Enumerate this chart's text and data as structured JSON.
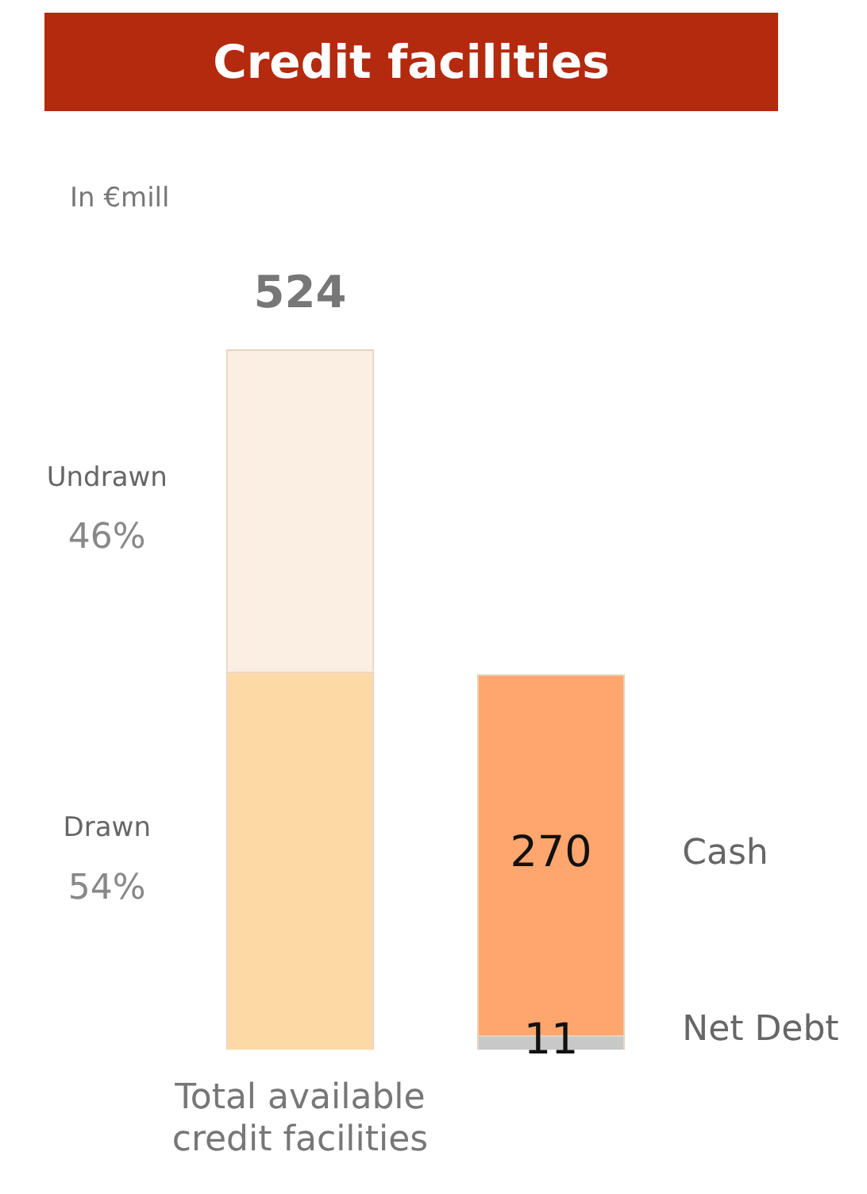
{
  "chart_data": {
    "type": "bar",
    "title": "Credit facilities",
    "subtitle": "In €mill",
    "categories": [
      "Total available credit facilities",
      null
    ],
    "stacked": true,
    "series": [
      {
        "name": "Drawn",
        "color": "#fdd9a6",
        "values": [
          283,
          null
        ]
      },
      {
        "name": "Undrawn",
        "color": "#fbeee2",
        "values": [
          241,
          null
        ]
      },
      {
        "name": "Net Debt",
        "color": "#c8c8c8",
        "values": [
          null,
          11
        ],
        "value_labels": [
          null,
          "11"
        ]
      },
      {
        "name": "Cash",
        "color": "#ffa66e",
        "values": [
          null,
          270
        ],
        "value_labels": [
          null,
          "270"
        ]
      }
    ],
    "totals": [
      "524",
      null
    ],
    "annotations": [
      "54%",
      "46%"
    ],
    "grid": false,
    "legend": false
  }
}
